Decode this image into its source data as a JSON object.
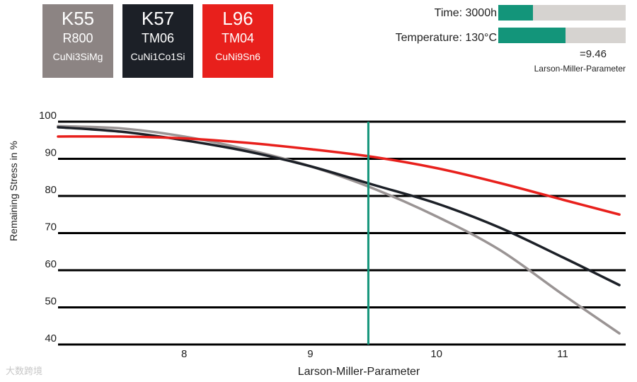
{
  "cards": [
    {
      "code": "K55",
      "grade": "R800",
      "alloy": "CuNi3SiMg",
      "color": "#8c8483"
    },
    {
      "code": "K57",
      "grade": "TM06",
      "alloy": "CuNi1Co1Si",
      "color": "#1c2027"
    },
    {
      "code": "L96",
      "grade": "TM04",
      "alloy": "CuNi9Sn6",
      "color": "#e8201c"
    }
  ],
  "params": {
    "time_label": "Time:",
    "time_value": "3000h",
    "time_level": 0.27,
    "temperature_label": "Temperature:",
    "temperature_value": "130°C",
    "temperature_level": 0.53,
    "bar_color": "#13957a",
    "result": "=9.46",
    "result_caption": "Larson-Miller-Parameter"
  },
  "watermark": "大数跨境",
  "chart_data": {
    "type": "line",
    "xlabel": "Larson-Miller-Parameter",
    "ylabel": "Remaining Stress in %",
    "xlim": [
      7.0,
      11.5
    ],
    "ylim": [
      40,
      100
    ],
    "xticks": [
      "8",
      "9",
      "10",
      "11"
    ],
    "yticks": [
      "40",
      "50",
      "60",
      "70",
      "80",
      "90",
      "100"
    ],
    "grid": "horizontal",
    "marker_x": 9.46,
    "marker_color": "#13957a",
    "series": [
      {
        "color": "#9a9494",
        "points": [
          [
            7.0,
            98.8
          ],
          [
            7.5,
            98.2
          ],
          [
            8.0,
            96.0
          ],
          [
            8.5,
            92.5
          ],
          [
            9.0,
            88.0
          ],
          [
            9.5,
            82.0
          ],
          [
            10.0,
            74.5
          ],
          [
            10.5,
            65.5
          ],
          [
            11.0,
            53.5
          ],
          [
            11.45,
            43.0
          ]
        ]
      },
      {
        "color": "#1c2027",
        "points": [
          [
            7.0,
            98.5
          ],
          [
            7.5,
            97.3
          ],
          [
            8.0,
            95.0
          ],
          [
            8.5,
            92.0
          ],
          [
            9.0,
            88.0
          ],
          [
            9.5,
            83.0
          ],
          [
            10.0,
            78.0
          ],
          [
            10.5,
            71.5
          ],
          [
            11.0,
            63.5
          ],
          [
            11.45,
            56.0
          ]
        ]
      },
      {
        "color": "#e8201c",
        "points": [
          [
            7.0,
            96.0
          ],
          [
            7.5,
            96.0
          ],
          [
            8.0,
            95.5
          ],
          [
            8.5,
            94.3
          ],
          [
            9.0,
            92.6
          ],
          [
            9.5,
            90.5
          ],
          [
            10.0,
            87.5
          ],
          [
            10.5,
            83.5
          ],
          [
            11.0,
            79.0
          ],
          [
            11.45,
            75.0
          ]
        ]
      }
    ]
  }
}
